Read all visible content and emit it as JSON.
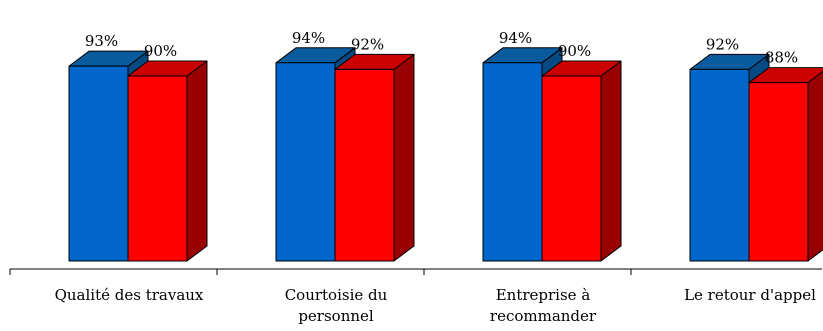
{
  "colors": {
    "series1": {
      "face": "#0066cc",
      "top": "#0a5a9e",
      "side": "#064a84"
    },
    "series2": {
      "face": "#ff0000",
      "top": "#cc0000",
      "side": "#990000"
    }
  },
  "chart_data": {
    "type": "bar",
    "style": "3d-clustered-column",
    "categories": [
      "Qualité des travaux",
      "Courtoisie du personnel",
      "Entreprise à recommander",
      "Le retour d'appel"
    ],
    "category_lines": [
      [
        "Qualité des travaux"
      ],
      [
        "Courtoisie du",
        "personnel"
      ],
      [
        "Entreprise à",
        "recommander"
      ],
      [
        "Le retour d'appel"
      ]
    ],
    "series": [
      {
        "values": [
          93,
          94,
          94,
          92
        ],
        "labels": [
          "93%",
          "94%",
          "94%",
          "92%"
        ]
      },
      {
        "values": [
          90,
          92,
          90,
          88
        ],
        "labels": [
          "90%",
          "92%",
          "90%",
          "88%"
        ]
      }
    ],
    "unit": "%",
    "title": "",
    "xlabel": "",
    "ylabel": "",
    "ylim": [
      0,
      100
    ],
    "grid": false,
    "legend": "none"
  }
}
